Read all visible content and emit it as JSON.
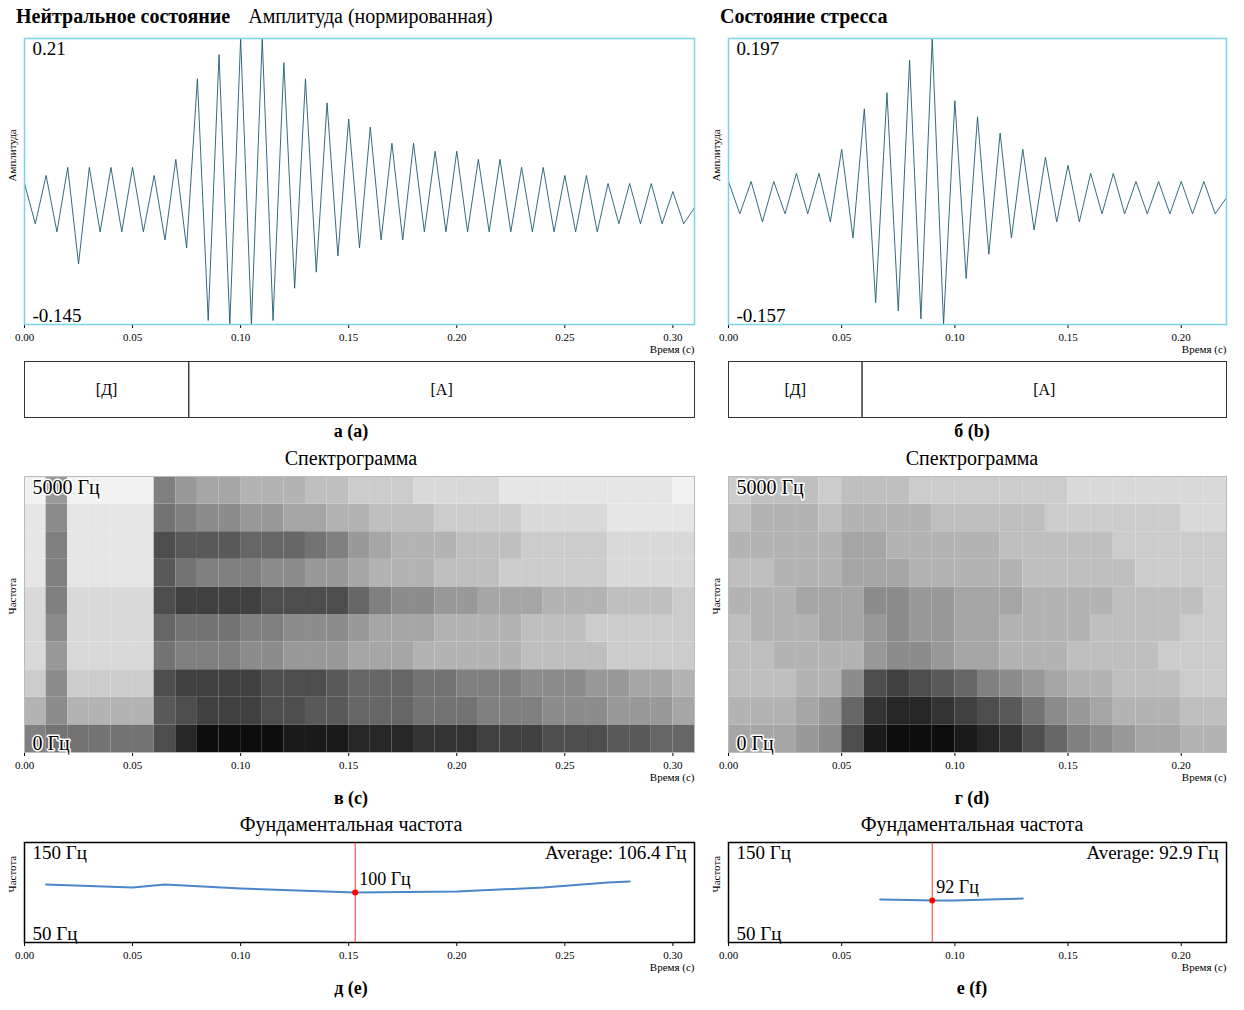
{
  "chart_data": [
    {
      "type": "line",
      "title": "Нейтральное состояние",
      "subtitle": "Амплитуда (нормированная)",
      "panel_label": "а (a)",
      "xlabel": "Время (с)",
      "ylabel": "Амплитуда",
      "color": "#1e5b70",
      "xlim": [
        0,
        0.31
      ],
      "xticks": [
        {
          "value": 0,
          "label": "0.00"
        },
        0.05,
        {
          "value": 0.1,
          "label": "0.10"
        },
        0.15,
        {
          "value": 0.2,
          "label": "0.20"
        },
        0.25,
        {
          "value": 0.3,
          "label": "0.30"
        }
      ],
      "ylim": [
        -0.145,
        0.21
      ],
      "yticks": [
        -0.145,
        0.21
      ],
      "x": [
        0,
        0.005,
        0.01,
        0.015,
        0.02,
        0.025,
        0.03,
        0.035,
        0.04,
        0.045,
        0.05,
        0.055,
        0.06,
        0.065,
        0.07,
        0.075,
        0.08,
        0.085,
        0.09,
        0.095,
        0.1,
        0.105,
        0.11,
        0.115,
        0.12,
        0.125,
        0.13,
        0.135,
        0.14,
        0.145,
        0.15,
        0.155,
        0.16,
        0.165,
        0.17,
        0.175,
        0.18,
        0.185,
        0.19,
        0.195,
        0.2,
        0.205,
        0.21,
        0.215,
        0.22,
        0.225,
        0.23,
        0.235,
        0.24,
        0.245,
        0.25,
        0.255,
        0.26,
        0.265,
        0.27,
        0.275,
        0.28,
        0.285,
        0.29,
        0.295,
        0.3,
        0.305,
        0.31
      ],
      "values": [
        0.03,
        -0.02,
        0.04,
        -0.03,
        0.05,
        -0.07,
        0.05,
        -0.03,
        0.05,
        -0.03,
        0.05,
        -0.03,
        0.04,
        -0.04,
        0.06,
        -0.05,
        0.16,
        -0.14,
        0.19,
        -0.145,
        0.21,
        -0.145,
        0.21,
        -0.14,
        0.18,
        -0.1,
        0.16,
        -0.08,
        0.13,
        -0.06,
        0.11,
        -0.05,
        0.1,
        -0.04,
        0.08,
        -0.04,
        0.08,
        -0.03,
        0.07,
        -0.03,
        0.07,
        -0.03,
        0.06,
        -0.03,
        0.06,
        -0.03,
        0.05,
        -0.03,
        0.05,
        -0.03,
        0.04,
        -0.03,
        0.04,
        -0.03,
        0.03,
        -0.02,
        0.03,
        -0.02,
        0.03,
        -0.02,
        0.02,
        -0.02,
        0
      ],
      "segments": [
        {
          "label": "[Д]",
          "start": 0,
          "end": 0.076
        },
        {
          "label": "[А]",
          "start": 0.076,
          "end": 0.31
        }
      ]
    },
    {
      "type": "line",
      "title": "Состояние стресса",
      "panel_label": "б (b)",
      "xlabel": "Время (с)",
      "ylabel": "Амплитуда",
      "color": "#1e5b70",
      "xlim": [
        0,
        0.22
      ],
      "xticks": [
        {
          "value": 0,
          "label": "0.00"
        },
        0.05,
        {
          "value": 0.1,
          "label": "0.10"
        },
        0.15,
        {
          "value": 0.2,
          "label": "0.20"
        }
      ],
      "ylim": [
        -0.157,
        0.197
      ],
      "yticks": [
        -0.157,
        0.197
      ],
      "x": [
        0,
        0.005,
        0.01,
        0.015,
        0.02,
        0.025,
        0.03,
        0.035,
        0.04,
        0.045,
        0.05,
        0.055,
        0.06,
        0.065,
        0.07,
        0.075,
        0.08,
        0.085,
        0.09,
        0.095,
        0.1,
        0.105,
        0.11,
        0.115,
        0.12,
        0.125,
        0.13,
        0.135,
        0.14,
        0.145,
        0.15,
        0.155,
        0.16,
        0.165,
        0.17,
        0.175,
        0.18,
        0.185,
        0.19,
        0.195,
        0.2,
        0.205,
        0.21,
        0.215,
        0.22
      ],
      "values": [
        0.02,
        -0.02,
        0.02,
        -0.03,
        0.02,
        -0.02,
        0.03,
        -0.02,
        0.03,
        -0.03,
        0.06,
        -0.05,
        0.11,
        -0.13,
        0.13,
        -0.14,
        0.17,
        -0.15,
        0.197,
        -0.157,
        0.12,
        -0.1,
        0.1,
        -0.07,
        0.08,
        -0.05,
        0.06,
        -0.04,
        0.05,
        -0.03,
        0.04,
        -0.03,
        0.03,
        -0.02,
        0.03,
        -0.02,
        0.02,
        -0.02,
        0.02,
        -0.02,
        0.02,
        -0.02,
        0.02,
        -0.02,
        0
      ],
      "segments": [
        {
          "label": "[Д]",
          "start": 0,
          "end": 0.059
        },
        {
          "label": "[А]",
          "start": 0.059,
          "end": 0.22
        }
      ]
    },
    {
      "type": "heatmap",
      "title": "Спектрограмма",
      "panel_label": "в (c)",
      "xlabel": "Время (с)",
      "ylabel": "Частота",
      "xlim": [
        0,
        0.31
      ],
      "xticks": [
        {
          "value": 0,
          "label": "0.00"
        },
        0.05,
        {
          "value": 0.1,
          "label": "0.10"
        },
        0.15,
        {
          "value": 0.2,
          "label": "0.20"
        },
        0.25,
        {
          "value": 0.3,
          "label": "0.30"
        }
      ],
      "ylim": [
        0,
        5000
      ],
      "yticks": [
        {
          "value": 0,
          "label": "0 Гц"
        },
        {
          "value": 5000,
          "label": "5000 Гц"
        }
      ],
      "time_edges": [
        0,
        0.01,
        0.02,
        0.03,
        0.04,
        0.05,
        0.06,
        0.07,
        0.08,
        0.09,
        0.1,
        0.11,
        0.12,
        0.13,
        0.14,
        0.15,
        0.16,
        0.17,
        0.18,
        0.19,
        0.2,
        0.21,
        0.22,
        0.23,
        0.24,
        0.25,
        0.26,
        0.27,
        0.28,
        0.29,
        0.3,
        0.31
      ],
      "freq_edges": [
        0,
        500,
        1000,
        1500,
        2000,
        2500,
        3000,
        3500,
        4000,
        4500,
        5000
      ],
      "intensity_lim": [
        0,
        1
      ],
      "cells": [
        [
          0.5,
          0.55,
          0.55,
          0.55,
          0.55,
          0.55,
          0.7,
          0.85,
          0.95,
          0.95,
          0.95,
          0.95,
          0.9,
          0.9,
          0.9,
          0.85,
          0.85,
          0.85,
          0.8,
          0.8,
          0.8,
          0.75,
          0.75,
          0.75,
          0.7,
          0.7,
          0.7,
          0.65,
          0.65,
          0.6,
          0.6
        ],
        [
          0.3,
          0.45,
          0.3,
          0.3,
          0.3,
          0.3,
          0.65,
          0.7,
          0.75,
          0.75,
          0.75,
          0.7,
          0.7,
          0.65,
          0.65,
          0.6,
          0.6,
          0.6,
          0.55,
          0.55,
          0.55,
          0.5,
          0.5,
          0.5,
          0.45,
          0.45,
          0.45,
          0.4,
          0.4,
          0.4,
          0.35
        ],
        [
          0.2,
          0.45,
          0.2,
          0.2,
          0.2,
          0.2,
          0.7,
          0.75,
          0.75,
          0.75,
          0.75,
          0.7,
          0.7,
          0.7,
          0.65,
          0.6,
          0.6,
          0.6,
          0.55,
          0.55,
          0.5,
          0.5,
          0.5,
          0.45,
          0.45,
          0.45,
          0.4,
          0.4,
          0.35,
          0.35,
          0.3
        ],
        [
          0.15,
          0.4,
          0.15,
          0.15,
          0.15,
          0.15,
          0.55,
          0.5,
          0.5,
          0.5,
          0.45,
          0.45,
          0.4,
          0.4,
          0.4,
          0.35,
          0.35,
          0.35,
          0.3,
          0.3,
          0.3,
          0.3,
          0.3,
          0.25,
          0.25,
          0.25,
          0.25,
          0.2,
          0.2,
          0.2,
          0.2
        ],
        [
          0.15,
          0.45,
          0.15,
          0.15,
          0.15,
          0.15,
          0.6,
          0.55,
          0.55,
          0.55,
          0.5,
          0.5,
          0.45,
          0.45,
          0.45,
          0.4,
          0.35,
          0.35,
          0.35,
          0.3,
          0.3,
          0.3,
          0.3,
          0.25,
          0.25,
          0.25,
          0.2,
          0.2,
          0.2,
          0.2,
          0.2
        ],
        [
          0.15,
          0.5,
          0.15,
          0.15,
          0.15,
          0.15,
          0.7,
          0.75,
          0.75,
          0.75,
          0.75,
          0.7,
          0.7,
          0.7,
          0.7,
          0.6,
          0.5,
          0.45,
          0.45,
          0.4,
          0.4,
          0.35,
          0.35,
          0.35,
          0.3,
          0.3,
          0.3,
          0.25,
          0.25,
          0.25,
          0.2
        ],
        [
          0.1,
          0.5,
          0.1,
          0.1,
          0.1,
          0.1,
          0.65,
          0.55,
          0.5,
          0.5,
          0.5,
          0.45,
          0.45,
          0.4,
          0.4,
          0.35,
          0.3,
          0.3,
          0.3,
          0.25,
          0.25,
          0.25,
          0.2,
          0.2,
          0.2,
          0.2,
          0.2,
          0.15,
          0.15,
          0.15,
          0.15
        ],
        [
          0.1,
          0.5,
          0.1,
          0.1,
          0.1,
          0.1,
          0.7,
          0.65,
          0.65,
          0.65,
          0.6,
          0.6,
          0.6,
          0.55,
          0.5,
          0.4,
          0.35,
          0.3,
          0.3,
          0.3,
          0.25,
          0.25,
          0.25,
          0.2,
          0.2,
          0.2,
          0.2,
          0.15,
          0.15,
          0.15,
          0.15
        ],
        [
          0.1,
          0.45,
          0.1,
          0.1,
          0.1,
          0.1,
          0.55,
          0.5,
          0.45,
          0.45,
          0.4,
          0.4,
          0.35,
          0.35,
          0.3,
          0.3,
          0.25,
          0.25,
          0.25,
          0.2,
          0.2,
          0.2,
          0.2,
          0.15,
          0.15,
          0.15,
          0.15,
          0.1,
          0.1,
          0.1,
          0.1
        ],
        [
          0.05,
          0.4,
          0.05,
          0.05,
          0.05,
          0.05,
          0.5,
          0.4,
          0.35,
          0.35,
          0.3,
          0.3,
          0.3,
          0.25,
          0.25,
          0.2,
          0.2,
          0.2,
          0.15,
          0.15,
          0.15,
          0.15,
          0.1,
          0.1,
          0.1,
          0.1,
          0.1,
          0.1,
          0.1,
          0.1,
          0.05
        ]
      ]
    },
    {
      "type": "heatmap",
      "title": "Спектрограмма",
      "panel_label": "г (d)",
      "xlabel": "Время (с)",
      "ylabel": "Частота",
      "xlim": [
        0,
        0.22
      ],
      "xticks": [
        {
          "value": 0,
          "label": "0.00"
        },
        0.05,
        {
          "value": 0.1,
          "label": "0.10"
        },
        0.15,
        {
          "value": 0.2,
          "label": "0.20"
        }
      ],
      "ylim": [
        0,
        5000
      ],
      "yticks": [
        {
          "value": 0,
          "label": "0 Гц"
        },
        {
          "value": 5000,
          "label": "5000 Гц"
        }
      ],
      "time_edges": [
        0,
        0.01,
        0.02,
        0.03,
        0.04,
        0.05,
        0.06,
        0.07,
        0.08,
        0.09,
        0.1,
        0.11,
        0.12,
        0.13,
        0.14,
        0.15,
        0.16,
        0.17,
        0.18,
        0.19,
        0.2,
        0.21,
        0.22
      ],
      "freq_edges": [
        0,
        500,
        1000,
        1500,
        2000,
        2500,
        3000,
        3500,
        4000,
        4500,
        5000
      ],
      "intensity_lim": [
        0,
        1
      ],
      "cells": [
        [
          0.35,
          0.35,
          0.35,
          0.4,
          0.45,
          0.7,
          0.9,
          0.95,
          0.95,
          0.95,
          0.9,
          0.85,
          0.8,
          0.7,
          0.6,
          0.5,
          0.45,
          0.4,
          0.35,
          0.35,
          0.3,
          0.3
        ],
        [
          0.3,
          0.3,
          0.3,
          0.35,
          0.4,
          0.6,
          0.8,
          0.85,
          0.85,
          0.8,
          0.75,
          0.7,
          0.65,
          0.55,
          0.45,
          0.4,
          0.35,
          0.3,
          0.3,
          0.3,
          0.25,
          0.25
        ],
        [
          0.25,
          0.25,
          0.25,
          0.3,
          0.3,
          0.45,
          0.7,
          0.75,
          0.7,
          0.65,
          0.6,
          0.5,
          0.45,
          0.4,
          0.35,
          0.3,
          0.3,
          0.25,
          0.25,
          0.25,
          0.2,
          0.2
        ],
        [
          0.25,
          0.25,
          0.3,
          0.3,
          0.3,
          0.3,
          0.4,
          0.45,
          0.45,
          0.4,
          0.35,
          0.35,
          0.3,
          0.3,
          0.3,
          0.25,
          0.25,
          0.25,
          0.25,
          0.2,
          0.2,
          0.2
        ],
        [
          0.25,
          0.3,
          0.3,
          0.3,
          0.35,
          0.35,
          0.4,
          0.45,
          0.4,
          0.4,
          0.35,
          0.35,
          0.3,
          0.3,
          0.3,
          0.3,
          0.25,
          0.25,
          0.25,
          0.25,
          0.2,
          0.2
        ],
        [
          0.3,
          0.3,
          0.3,
          0.35,
          0.35,
          0.35,
          0.45,
          0.45,
          0.4,
          0.4,
          0.35,
          0.35,
          0.35,
          0.3,
          0.3,
          0.3,
          0.3,
          0.25,
          0.25,
          0.25,
          0.25,
          0.2
        ],
        [
          0.25,
          0.25,
          0.3,
          0.3,
          0.3,
          0.35,
          0.35,
          0.35,
          0.3,
          0.3,
          0.3,
          0.3,
          0.3,
          0.25,
          0.25,
          0.25,
          0.25,
          0.25,
          0.2,
          0.2,
          0.2,
          0.2
        ],
        [
          0.3,
          0.3,
          0.3,
          0.3,
          0.3,
          0.35,
          0.35,
          0.3,
          0.3,
          0.3,
          0.3,
          0.3,
          0.25,
          0.25,
          0.25,
          0.25,
          0.25,
          0.2,
          0.2,
          0.2,
          0.2,
          0.2
        ],
        [
          0.25,
          0.3,
          0.3,
          0.3,
          0.25,
          0.3,
          0.3,
          0.3,
          0.3,
          0.25,
          0.25,
          0.25,
          0.25,
          0.25,
          0.2,
          0.2,
          0.2,
          0.2,
          0.2,
          0.2,
          0.15,
          0.15
        ],
        [
          0.2,
          0.25,
          0.25,
          0.25,
          0.2,
          0.25,
          0.25,
          0.25,
          0.2,
          0.2,
          0.2,
          0.2,
          0.2,
          0.2,
          0.2,
          0.15,
          0.15,
          0.15,
          0.15,
          0.15,
          0.15,
          0.15
        ]
      ]
    },
    {
      "type": "line",
      "title": "Фундаментальная частота",
      "panel_label": "д (e)",
      "xlabel": "Время (с)",
      "ylabel": "Частота",
      "color": "#4a86c8",
      "xlim": [
        0,
        0.31
      ],
      "xticks": [
        {
          "value": 0,
          "label": "0.00"
        },
        0.05,
        {
          "value": 0.1,
          "label": "0.10"
        },
        0.15,
        {
          "value": 0.2,
          "label": "0.20"
        },
        0.25,
        {
          "value": 0.3,
          "label": "0.30"
        }
      ],
      "ylim": [
        50,
        150
      ],
      "yticks": [
        {
          "value": 50,
          "label": "50 Гц"
        },
        {
          "value": 150,
          "label": "150 Гц"
        }
      ],
      "x": [
        0.01,
        0.05,
        0.065,
        0.1,
        0.153,
        0.2,
        0.24,
        0.27,
        0.28
      ],
      "values": [
        108,
        105,
        108,
        104,
        100,
        101,
        105,
        110,
        111
      ],
      "highlight": {
        "x": 0.153,
        "value": 100,
        "label": "100 Гц"
      },
      "annotation": "Average: 106.4 Гц"
    },
    {
      "type": "line",
      "title": "Фундаментальная частота",
      "panel_label": "е (f)",
      "xlabel": "Время (с)",
      "ylabel": "Частота",
      "color": "#4a86c8",
      "xlim": [
        0,
        0.22
      ],
      "xticks": [
        {
          "value": 0,
          "label": "0.00"
        },
        0.05,
        {
          "value": 0.1,
          "label": "0.10"
        },
        0.15,
        {
          "value": 0.2,
          "label": "0.20"
        }
      ],
      "ylim": [
        50,
        150
      ],
      "yticks": [
        {
          "value": 50,
          "label": "50 Гц"
        },
        {
          "value": 150,
          "label": "150 Гц"
        }
      ],
      "x": [
        0.067,
        0.08,
        0.09,
        0.1,
        0.115,
        0.13
      ],
      "values": [
        93,
        92.5,
        92,
        92,
        93,
        94
      ],
      "highlight": {
        "x": 0.09,
        "value": 92,
        "label": "92 Гц"
      },
      "annotation": "Average: 92.9 Гц"
    }
  ]
}
